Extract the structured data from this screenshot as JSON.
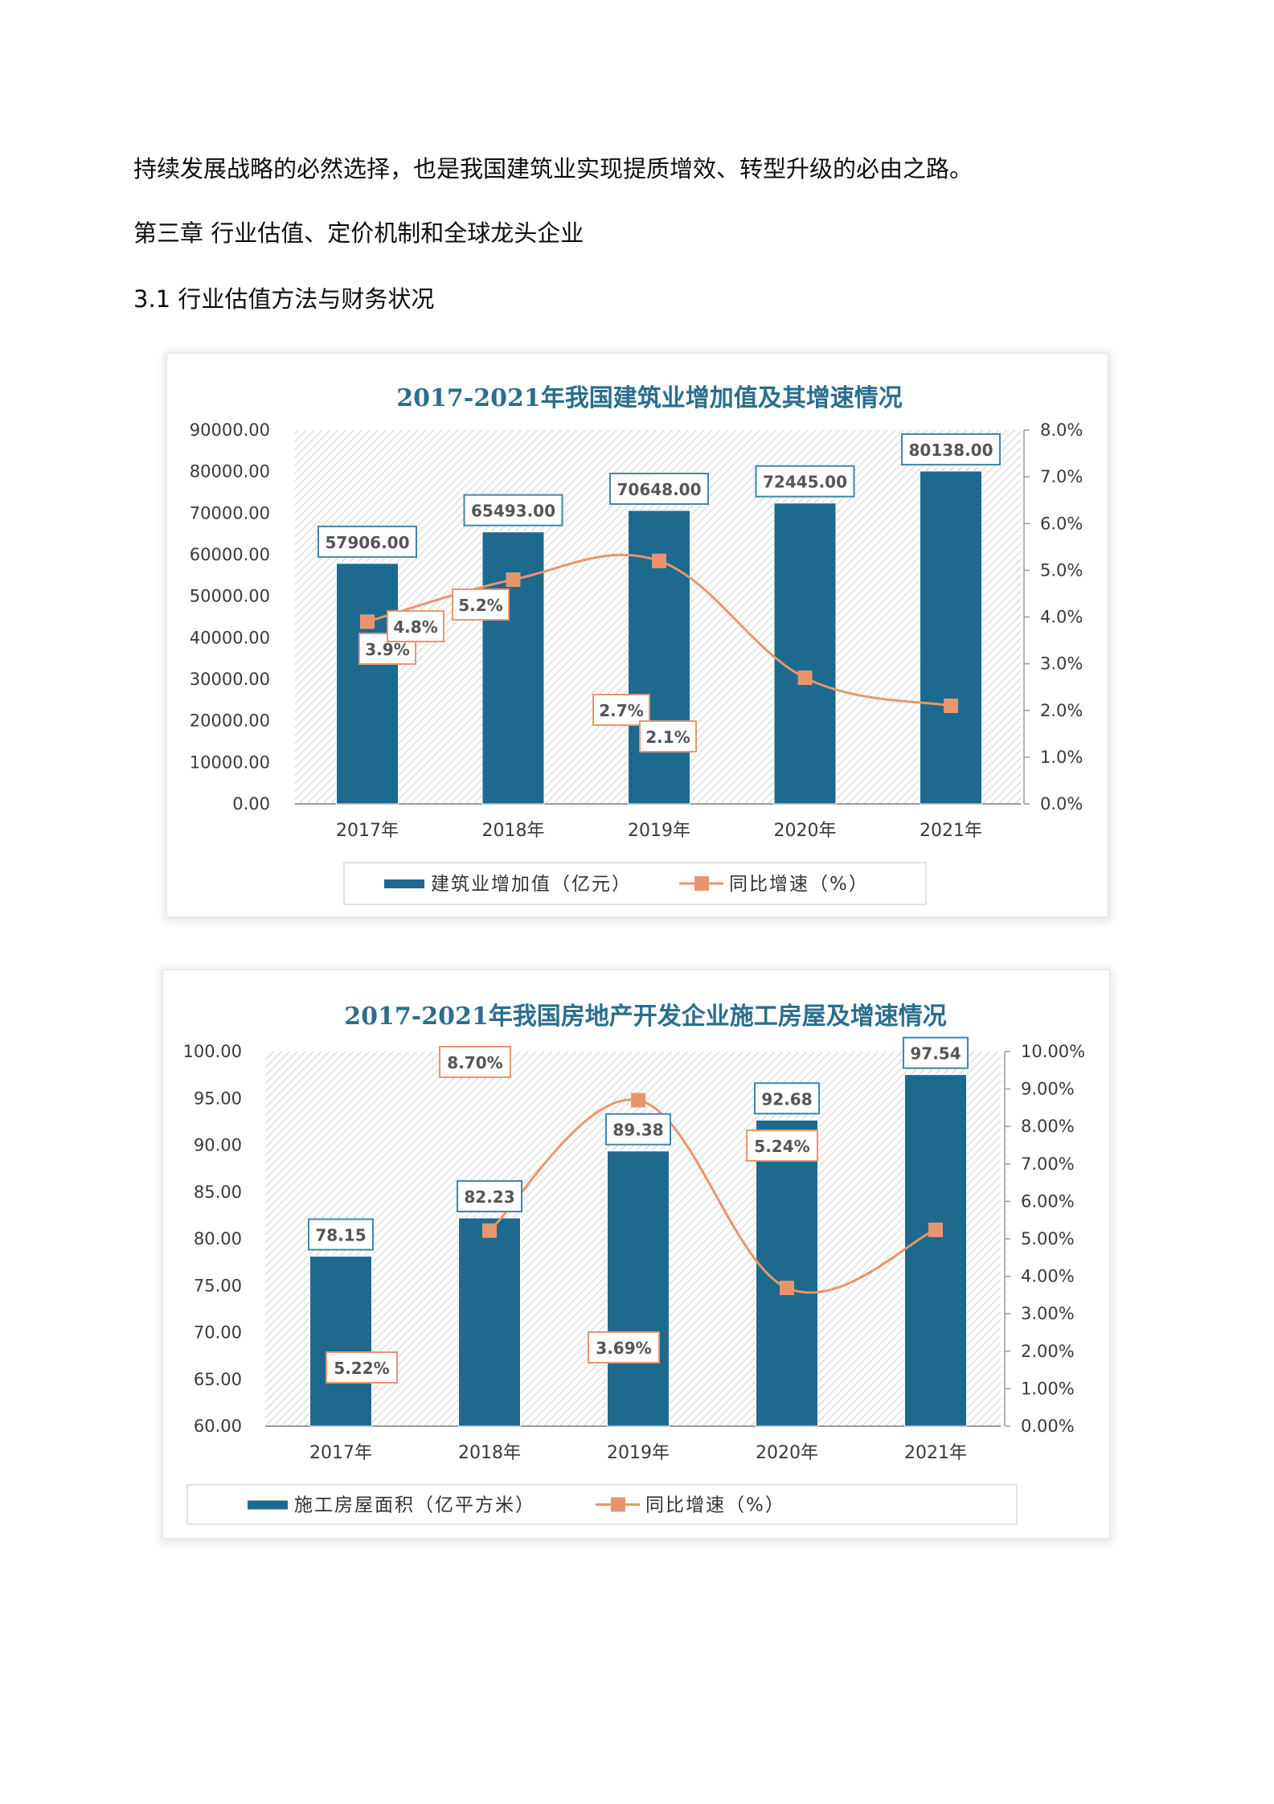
{
  "document": {
    "paragraphs": [
      "持续发展战略的必然选择，也是我国建筑业实现提质增效、转型升级的必由之路。",
      "第三章 行业估值、定价机制和全球龙头企业",
      "3.1 行业估值方法与财务状况"
    ]
  },
  "colors": {
    "bar": "#1d6a8e",
    "line": "#e8956f",
    "title": "#2b6e8d",
    "bar_label_border": "#3f86a6",
    "line_label_border": "#e8956f"
  },
  "chart_data": [
    {
      "type": "bar",
      "title": "2017-2021年我国建筑业增加值及其增速情况",
      "categories": [
        "2017年",
        "2018年",
        "2019年",
        "2020年",
        "2021年"
      ],
      "series": [
        {
          "name": "建筑业增加值（亿元）",
          "type": "bar",
          "axis": "left",
          "values": [
            57906.0,
            65493.0,
            70648.0,
            72445.0,
            80138.0
          ],
          "labels": [
            "57906.00",
            "65493.00",
            "70648.00",
            "72445.00",
            "80138.00"
          ]
        },
        {
          "name": "同比增速（%）",
          "type": "line",
          "axis": "right",
          "values": [
            3.9,
            4.8,
            5.2,
            2.7,
            2.1
          ],
          "labels": [
            "3.9%",
            "4.8%",
            "5.2%",
            "2.7%",
            "2.1%"
          ]
        }
      ],
      "ylim_left": [
        0,
        90000
      ],
      "yticks_left": [
        "0.00",
        "10000.00",
        "20000.00",
        "30000.00",
        "40000.00",
        "50000.00",
        "60000.00",
        "70000.00",
        "80000.00",
        "90000.00"
      ],
      "ylim_right": [
        0,
        8
      ],
      "yticks_right": [
        "0.0%",
        "1.0%",
        "2.0%",
        "3.0%",
        "4.0%",
        "5.0%",
        "6.0%",
        "7.0%",
        "8.0%"
      ],
      "xlabel": "",
      "ylabel": "",
      "legend_position": "bottom",
      "grid": false
    },
    {
      "type": "bar",
      "title": "2017-2021年我国房地产开发企业施工房屋及增速情况",
      "categories": [
        "2017年",
        "2018年",
        "2019年",
        "2020年",
        "2021年"
      ],
      "series": [
        {
          "name": "施工房屋面积（亿平方米）",
          "type": "bar",
          "axis": "left",
          "values": [
            78.15,
            82.23,
            89.38,
            92.68,
            97.54
          ],
          "labels": [
            "78.15",
            "82.23",
            "89.38",
            "92.68",
            "97.54"
          ]
        },
        {
          "name": "同比增速（%）",
          "type": "line",
          "axis": "right",
          "values": [
            null,
            5.22,
            8.7,
            3.69,
            5.24
          ],
          "labels": [
            "",
            "5.22%",
            "8.70%",
            "3.69%",
            "5.24%"
          ]
        }
      ],
      "ylim_left": [
        60,
        100
      ],
      "yticks_left": [
        "60.00",
        "65.00",
        "70.00",
        "75.00",
        "80.00",
        "85.00",
        "90.00",
        "95.00",
        "100.00"
      ],
      "ylim_right": [
        0,
        10
      ],
      "yticks_right": [
        "0.00%",
        "1.00%",
        "2.00%",
        "3.00%",
        "4.00%",
        "5.00%",
        "6.00%",
        "7.00%",
        "8.00%",
        "9.00%",
        "10.00%"
      ],
      "xlabel": "",
      "ylabel": "",
      "legend_position": "bottom",
      "grid": false
    }
  ]
}
